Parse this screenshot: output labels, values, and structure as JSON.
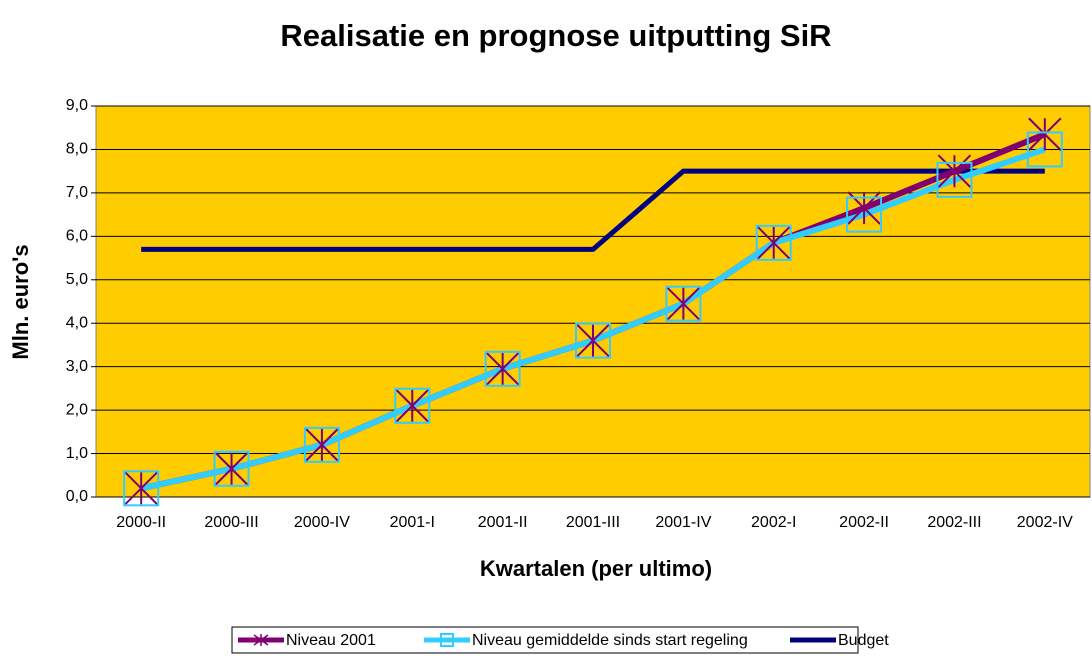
{
  "chart_data": {
    "type": "line",
    "title": "Realisatie en prognose uitputting SiR",
    "x_label": "Kwartalen (per ultimo)",
    "y_label": "Mln. euro's",
    "categories": [
      "2000-II",
      "2000-III",
      "2000-IV",
      "2001-I",
      "2001-II",
      "2001-III",
      "2001-IV",
      "2002-I",
      "2002-II",
      "2002-III",
      "2002-IV"
    ],
    "series": [
      {
        "name": "Niveau  2001",
        "color": "#800070",
        "marker": "star",
        "values": [
          0.2,
          0.65,
          1.2,
          2.1,
          2.95,
          3.6,
          4.45,
          5.85,
          6.65,
          7.5,
          8.35
        ]
      },
      {
        "name": "Niveau gemiddelde sinds start regeling",
        "color": "#33CCFF",
        "marker": "square",
        "values": [
          0.2,
          0.65,
          1.2,
          2.1,
          2.95,
          3.6,
          4.45,
          5.85,
          6.5,
          7.3,
          8.0
        ]
      },
      {
        "name": "Budget",
        "color": "#000080",
        "marker": "none",
        "values": [
          5.7,
          5.7,
          5.7,
          5.7,
          5.7,
          5.7,
          7.5,
          7.5,
          7.5,
          7.5,
          7.5
        ]
      }
    ],
    "ylim": [
      0,
      9
    ],
    "yticks": [
      {
        "value": 0,
        "label": "0,0"
      },
      {
        "value": 1,
        "label": "1,0"
      },
      {
        "value": 2,
        "label": "2,0"
      },
      {
        "value": 3,
        "label": "3,0"
      },
      {
        "value": 4,
        "label": "4,0"
      },
      {
        "value": 5,
        "label": "5,0"
      },
      {
        "value": 6,
        "label": "6,0"
      },
      {
        "value": 7,
        "label": "7,0"
      },
      {
        "value": 8,
        "label": "8,0"
      },
      {
        "value": 9,
        "label": "9,0"
      }
    ],
    "grid": true,
    "plot_background": "#FFCC00",
    "legend": "bottom"
  }
}
